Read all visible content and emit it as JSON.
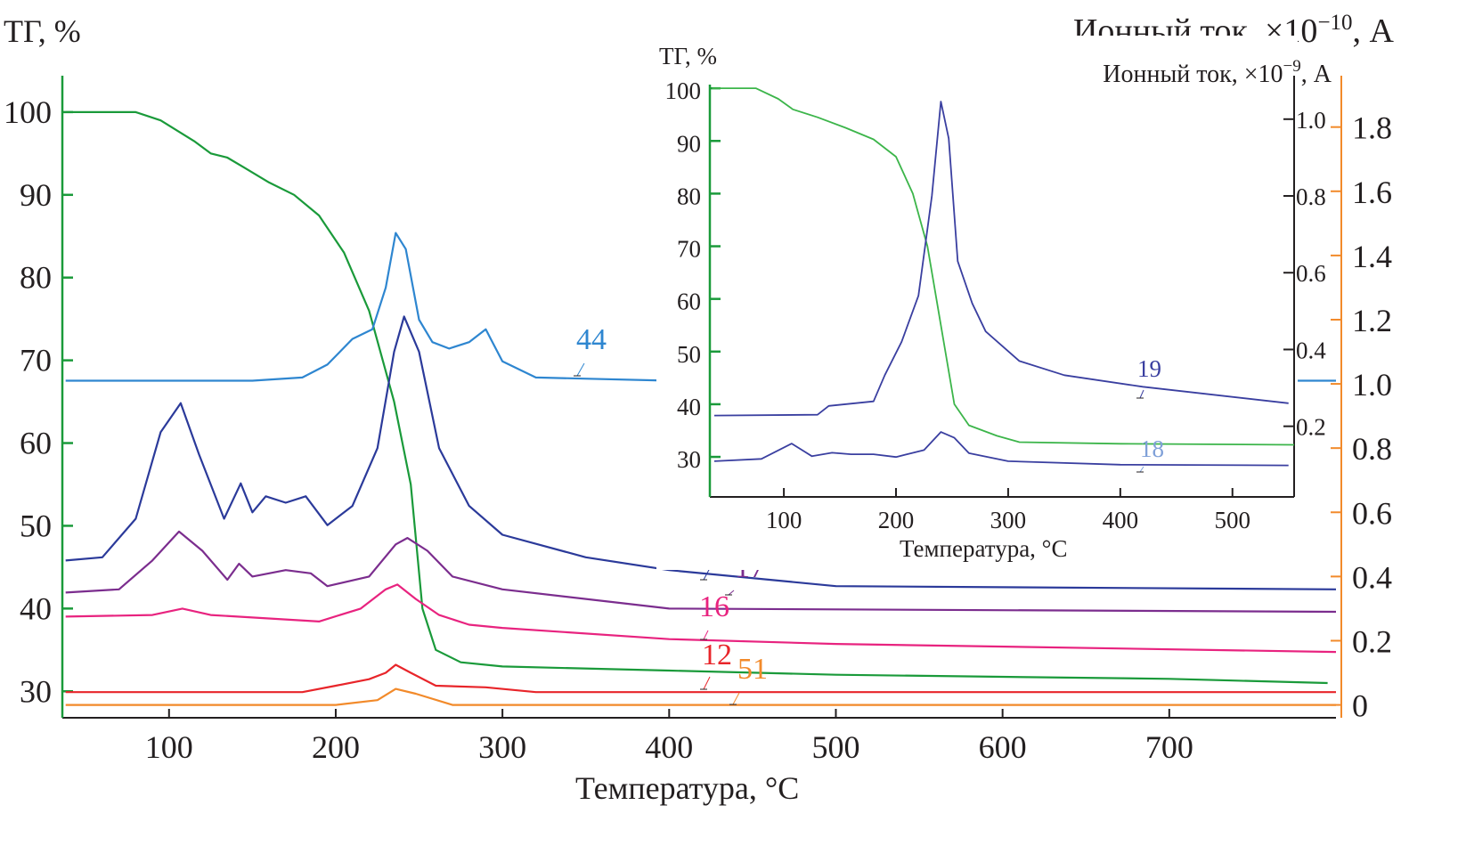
{
  "chart_data": [
    {
      "type": "line",
      "xlabel": "Температура, °C",
      "ylabel_left": "ТГ, %",
      "ylabel_right": "Ионный ток, ×10−10, А",
      "ylabel_right_base": "Ионный ток, ×10",
      "ylabel_right_exp": "−10",
      "ylabel_right_unit": ", А",
      "xlim": [
        36,
        800
      ],
      "ylim_left": [
        26.8,
        104.4
      ],
      "ylim_right": [
        -0.04,
        1.96
      ],
      "x_ticks": [
        100,
        200,
        300,
        400,
        500,
        600,
        700
      ],
      "y_left_ticks": [
        30,
        40,
        50,
        60,
        70,
        80,
        90,
        100
      ],
      "y_right_ticks": [
        "0",
        "0.2",
        "0.4",
        "0.6",
        "0.8",
        "1.0",
        "1.2",
        "1.4",
        "1.6",
        "1.8"
      ],
      "grid": false,
      "colors": {
        "axis_left": "#1a9a3a",
        "axis_right": "#f28a2a"
      },
      "series": [
        {
          "name": "ТГ",
          "axis": "left",
          "color": "#1a9a3a",
          "x": [
            38,
            80,
            95,
            115,
            125,
            135,
            145,
            160,
            175,
            190,
            205,
            220,
            235,
            245,
            252,
            260,
            275,
            300,
            400,
            500,
            700,
            795
          ],
          "y": [
            100,
            100,
            99,
            96.5,
            95,
            94.5,
            93.3,
            91.5,
            90,
            87.5,
            83,
            76,
            65,
            55,
            40,
            35,
            33.5,
            33,
            32.5,
            32,
            31.5,
            31
          ]
        },
        {
          "name": "44",
          "axis": "right",
          "color": "#2e86d0",
          "x": [
            38,
            150,
            180,
            195,
            210,
            222,
            230,
            236,
            242,
            250,
            258,
            268,
            280,
            290,
            300,
            320,
            400,
            800
          ],
          "y": [
            1.01,
            1.01,
            1.02,
            1.06,
            1.14,
            1.17,
            1.3,
            1.47,
            1.42,
            1.2,
            1.13,
            1.11,
            1.13,
            1.17,
            1.07,
            1.02,
            1.01,
            1.01
          ]
        },
        {
          "name": "18",
          "axis": "right",
          "color": "#2b3a9a",
          "x": [
            38,
            60,
            80,
            95,
            107,
            118,
            133,
            143,
            150,
            158,
            170,
            182,
            195,
            210,
            225,
            235,
            241,
            250,
            262,
            280,
            300,
            350,
            400,
            500,
            800
          ],
          "y": [
            0.45,
            0.46,
            0.58,
            0.85,
            0.94,
            0.78,
            0.58,
            0.69,
            0.6,
            0.65,
            0.63,
            0.65,
            0.56,
            0.62,
            0.8,
            1.1,
            1.21,
            1.1,
            0.8,
            0.62,
            0.53,
            0.46,
            0.42,
            0.37,
            0.36
          ]
        },
        {
          "name": "17",
          "axis": "right",
          "color": "#7b2d8e",
          "x": [
            38,
            70,
            90,
            106,
            120,
            135,
            142,
            150,
            170,
            185,
            195,
            220,
            236,
            243,
            255,
            270,
            300,
            400,
            800
          ],
          "y": [
            0.35,
            0.36,
            0.45,
            0.54,
            0.48,
            0.39,
            0.44,
            0.4,
            0.42,
            0.41,
            0.37,
            0.4,
            0.5,
            0.52,
            0.48,
            0.4,
            0.36,
            0.3,
            0.29
          ]
        },
        {
          "name": "16",
          "axis": "right",
          "color": "#e8237f",
          "x": [
            38,
            90,
            108,
            125,
            190,
            215,
            230,
            237,
            248,
            262,
            280,
            300,
            400,
            500,
            800
          ],
          "y": [
            0.275,
            0.28,
            0.3,
            0.28,
            0.26,
            0.3,
            0.36,
            0.375,
            0.33,
            0.28,
            0.25,
            0.24,
            0.205,
            0.19,
            0.165
          ]
        },
        {
          "name": "12",
          "axis": "right",
          "color": "#e8252a",
          "x": [
            38,
            180,
            200,
            220,
            230,
            236,
            245,
            260,
            290,
            320,
            800
          ],
          "y": [
            0.04,
            0.04,
            0.06,
            0.08,
            0.1,
            0.125,
            0.1,
            0.06,
            0.055,
            0.04,
            0.04
          ]
        },
        {
          "name": "51",
          "axis": "right",
          "color": "#f28a2a",
          "x": [
            38,
            200,
            225,
            236,
            248,
            270,
            800
          ],
          "y": [
            0.0,
            0.0,
            0.015,
            0.05,
            0.035,
            0.0,
            0.0
          ]
        }
      ]
    },
    {
      "type": "line",
      "inset": true,
      "xlabel": "Температура, °C",
      "ylabel_left": "ТГ, %",
      "ylabel_right": "Ионный ток, ×10−9, А",
      "ylabel_right_base": "Ионный ток, ×10",
      "ylabel_right_exp": "−9",
      "ylabel_right_unit": ", А",
      "xlim": [
        34,
        555
      ],
      "ylim_left": [
        22.4,
        100.7
      ],
      "ylim_right": [
        0.016,
        1.09
      ],
      "x_ticks": [
        100,
        200,
        300,
        400,
        500
      ],
      "y_left_ticks": [
        30,
        40,
        50,
        60,
        70,
        80,
        90,
        100
      ],
      "y_right_ticks": [
        "0.2",
        "0.4",
        "0.6",
        "0.8",
        "1.0"
      ],
      "grid": false,
      "series": [
        {
          "name": "ТГ",
          "axis": "left",
          "color": "#3cb54a",
          "x": [
            36,
            75,
            95,
            108,
            130,
            155,
            180,
            200,
            215,
            228,
            240,
            252,
            265,
            290,
            310,
            400,
            555
          ],
          "y": [
            100,
            100,
            98,
            96,
            94.5,
            92.5,
            90.3,
            87,
            80,
            70,
            55,
            40,
            36,
            34,
            32.8,
            32.5,
            32.3
          ]
        },
        {
          "name": "19",
          "axis": "right",
          "color": "#3a3fa0",
          "x": [
            38,
            130,
            140,
            180,
            190,
            205,
            220,
            232,
            240,
            247,
            255,
            268,
            280,
            310,
            350,
            420,
            550
          ],
          "y": [
            0.228,
            0.23,
            0.253,
            0.265,
            0.333,
            0.42,
            0.54,
            0.8,
            1.046,
            0.95,
            0.63,
            0.52,
            0.447,
            0.37,
            0.333,
            0.303,
            0.26
          ]
        },
        {
          "name": "18",
          "axis": "right",
          "color": "#3a3fa0",
          "label_color": "#7fa0d8",
          "x": [
            38,
            80,
            107,
            125,
            143,
            160,
            180,
            200,
            225,
            240,
            252,
            265,
            300,
            400,
            550
          ],
          "y": [
            0.109,
            0.115,
            0.155,
            0.122,
            0.131,
            0.127,
            0.127,
            0.12,
            0.138,
            0.185,
            0.17,
            0.13,
            0.109,
            0.1,
            0.098
          ]
        }
      ]
    }
  ]
}
